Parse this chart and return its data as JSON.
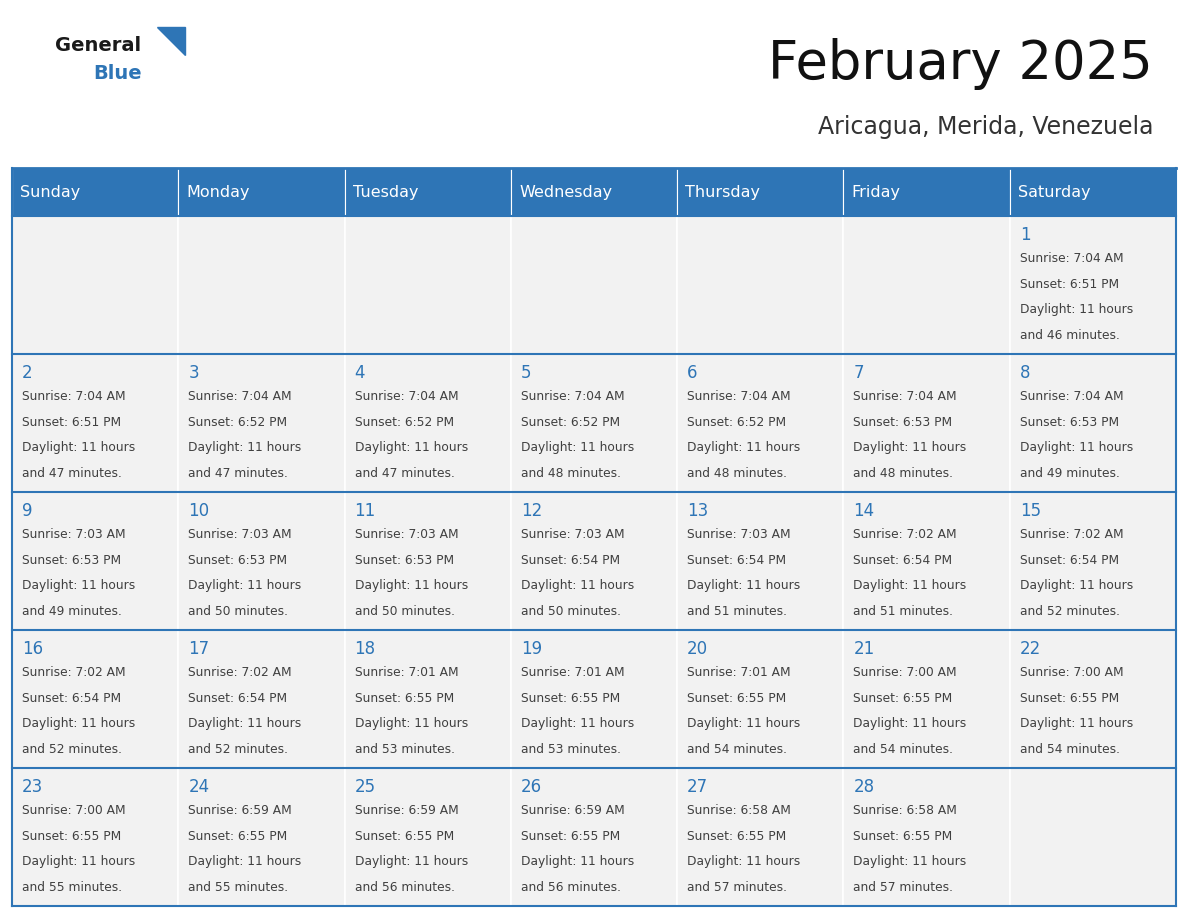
{
  "title": "February 2025",
  "subtitle": "Aricagua, Merida, Venezuela",
  "header_bg_color": "#2E75B6",
  "header_text_color": "#FFFFFF",
  "cell_bg_color": "#F2F2F2",
  "cell_alt_bg_color": "#FFFFFF",
  "cell_text_color": "#404040",
  "day_number_color": "#2E75B6",
  "bg_color": "#FFFFFF",
  "border_color": "#2E75B6",
  "days_of_week": [
    "Sunday",
    "Monday",
    "Tuesday",
    "Wednesday",
    "Thursday",
    "Friday",
    "Saturday"
  ],
  "calendar_data": [
    [
      {
        "day": "",
        "sunrise": "",
        "sunset": "",
        "daylight": ""
      },
      {
        "day": "",
        "sunrise": "",
        "sunset": "",
        "daylight": ""
      },
      {
        "day": "",
        "sunrise": "",
        "sunset": "",
        "daylight": ""
      },
      {
        "day": "",
        "sunrise": "",
        "sunset": "",
        "daylight": ""
      },
      {
        "day": "",
        "sunrise": "",
        "sunset": "",
        "daylight": ""
      },
      {
        "day": "",
        "sunrise": "",
        "sunset": "",
        "daylight": ""
      },
      {
        "day": "1",
        "sunrise": "7:04 AM",
        "sunset": "6:51 PM",
        "daylight": "11 hours and 46 minutes."
      }
    ],
    [
      {
        "day": "2",
        "sunrise": "7:04 AM",
        "sunset": "6:51 PM",
        "daylight": "11 hours and 47 minutes."
      },
      {
        "day": "3",
        "sunrise": "7:04 AM",
        "sunset": "6:52 PM",
        "daylight": "11 hours and 47 minutes."
      },
      {
        "day": "4",
        "sunrise": "7:04 AM",
        "sunset": "6:52 PM",
        "daylight": "11 hours and 47 minutes."
      },
      {
        "day": "5",
        "sunrise": "7:04 AM",
        "sunset": "6:52 PM",
        "daylight": "11 hours and 48 minutes."
      },
      {
        "day": "6",
        "sunrise": "7:04 AM",
        "sunset": "6:52 PM",
        "daylight": "11 hours and 48 minutes."
      },
      {
        "day": "7",
        "sunrise": "7:04 AM",
        "sunset": "6:53 PM",
        "daylight": "11 hours and 48 minutes."
      },
      {
        "day": "8",
        "sunrise": "7:04 AM",
        "sunset": "6:53 PM",
        "daylight": "11 hours and 49 minutes."
      }
    ],
    [
      {
        "day": "9",
        "sunrise": "7:03 AM",
        "sunset": "6:53 PM",
        "daylight": "11 hours and 49 minutes."
      },
      {
        "day": "10",
        "sunrise": "7:03 AM",
        "sunset": "6:53 PM",
        "daylight": "11 hours and 50 minutes."
      },
      {
        "day": "11",
        "sunrise": "7:03 AM",
        "sunset": "6:53 PM",
        "daylight": "11 hours and 50 minutes."
      },
      {
        "day": "12",
        "sunrise": "7:03 AM",
        "sunset": "6:54 PM",
        "daylight": "11 hours and 50 minutes."
      },
      {
        "day": "13",
        "sunrise": "7:03 AM",
        "sunset": "6:54 PM",
        "daylight": "11 hours and 51 minutes."
      },
      {
        "day": "14",
        "sunrise": "7:02 AM",
        "sunset": "6:54 PM",
        "daylight": "11 hours and 51 minutes."
      },
      {
        "day": "15",
        "sunrise": "7:02 AM",
        "sunset": "6:54 PM",
        "daylight": "11 hours and 52 minutes."
      }
    ],
    [
      {
        "day": "16",
        "sunrise": "7:02 AM",
        "sunset": "6:54 PM",
        "daylight": "11 hours and 52 minutes."
      },
      {
        "day": "17",
        "sunrise": "7:02 AM",
        "sunset": "6:54 PM",
        "daylight": "11 hours and 52 minutes."
      },
      {
        "day": "18",
        "sunrise": "7:01 AM",
        "sunset": "6:55 PM",
        "daylight": "11 hours and 53 minutes."
      },
      {
        "day": "19",
        "sunrise": "7:01 AM",
        "sunset": "6:55 PM",
        "daylight": "11 hours and 53 minutes."
      },
      {
        "day": "20",
        "sunrise": "7:01 AM",
        "sunset": "6:55 PM",
        "daylight": "11 hours and 54 minutes."
      },
      {
        "day": "21",
        "sunrise": "7:00 AM",
        "sunset": "6:55 PM",
        "daylight": "11 hours and 54 minutes."
      },
      {
        "day": "22",
        "sunrise": "7:00 AM",
        "sunset": "6:55 PM",
        "daylight": "11 hours and 54 minutes."
      }
    ],
    [
      {
        "day": "23",
        "sunrise": "7:00 AM",
        "sunset": "6:55 PM",
        "daylight": "11 hours and 55 minutes."
      },
      {
        "day": "24",
        "sunrise": "6:59 AM",
        "sunset": "6:55 PM",
        "daylight": "11 hours and 55 minutes."
      },
      {
        "day": "25",
        "sunrise": "6:59 AM",
        "sunset": "6:55 PM",
        "daylight": "11 hours and 56 minutes."
      },
      {
        "day": "26",
        "sunrise": "6:59 AM",
        "sunset": "6:55 PM",
        "daylight": "11 hours and 56 minutes."
      },
      {
        "day": "27",
        "sunrise": "6:58 AM",
        "sunset": "6:55 PM",
        "daylight": "11 hours and 57 minutes."
      },
      {
        "day": "28",
        "sunrise": "6:58 AM",
        "sunset": "6:55 PM",
        "daylight": "11 hours and 57 minutes."
      },
      {
        "day": "",
        "sunrise": "",
        "sunset": "",
        "daylight": ""
      }
    ]
  ],
  "logo_general_color": "#1a1a1a",
  "logo_blue_color": "#2E75B6",
  "logo_triangle_color": "#2E75B6",
  "title_fontsize": 38,
  "subtitle_fontsize": 17,
  "header_fontsize": 11.5,
  "day_num_fontsize": 12,
  "cell_text_fontsize": 8.8
}
